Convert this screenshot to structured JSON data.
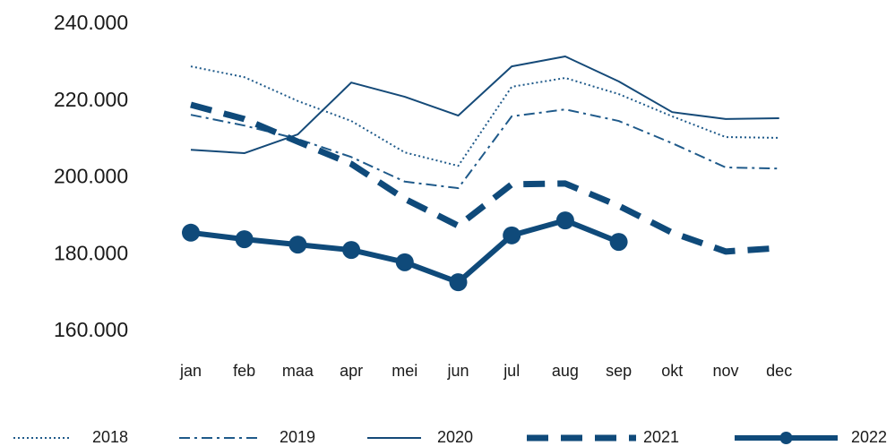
{
  "chart_data": {
    "type": "line",
    "categories": [
      "jan",
      "feb",
      "maa",
      "apr",
      "mei",
      "jun",
      "jul",
      "aug",
      "sep",
      "okt",
      "nov",
      "dec"
    ],
    "ylim": [
      160000,
      240000
    ],
    "yticks": [
      {
        "value": 160000,
        "label": "160.000"
      },
      {
        "value": 180000,
        "label": "180.000"
      },
      {
        "value": 200000,
        "label": "200.000"
      },
      {
        "value": 220000,
        "label": "220.000"
      },
      {
        "value": 240000,
        "label": "240.000"
      }
    ],
    "grid": false,
    "legend": "bottom",
    "series": [
      {
        "name": "2018",
        "color": "#1f5a8a",
        "style": "dotted",
        "values": [
          229000,
          226200,
          220000,
          214800,
          206600,
          203100,
          223700,
          226000,
          221800,
          216000,
          210600,
          210400
        ]
      },
      {
        "name": "2019",
        "color": "#1f5a8a",
        "style": "dashdot",
        "values": [
          216400,
          213600,
          210100,
          205400,
          199000,
          197300,
          216000,
          217800,
          214800,
          209000,
          202700,
          202400
        ]
      },
      {
        "name": "2020",
        "color": "#154a78",
        "style": "solid",
        "values": [
          207300,
          206400,
          211300,
          224800,
          221100,
          216200,
          229000,
          231600,
          225100,
          217100,
          215300,
          215500
        ]
      },
      {
        "name": "2021",
        "color": "#0f4a7a",
        "style": "dashed",
        "values": [
          219000,
          215300,
          209400,
          203600,
          194500,
          187500,
          198300,
          198500,
          192700,
          185700,
          180800,
          181700
        ]
      },
      {
        "name": "2022",
        "color": "#0f4a7a",
        "style": "markers",
        "values": [
          185700,
          184000,
          182600,
          181200,
          178000,
          172800,
          185000,
          188900,
          183300,
          null,
          null,
          null
        ]
      }
    ]
  }
}
